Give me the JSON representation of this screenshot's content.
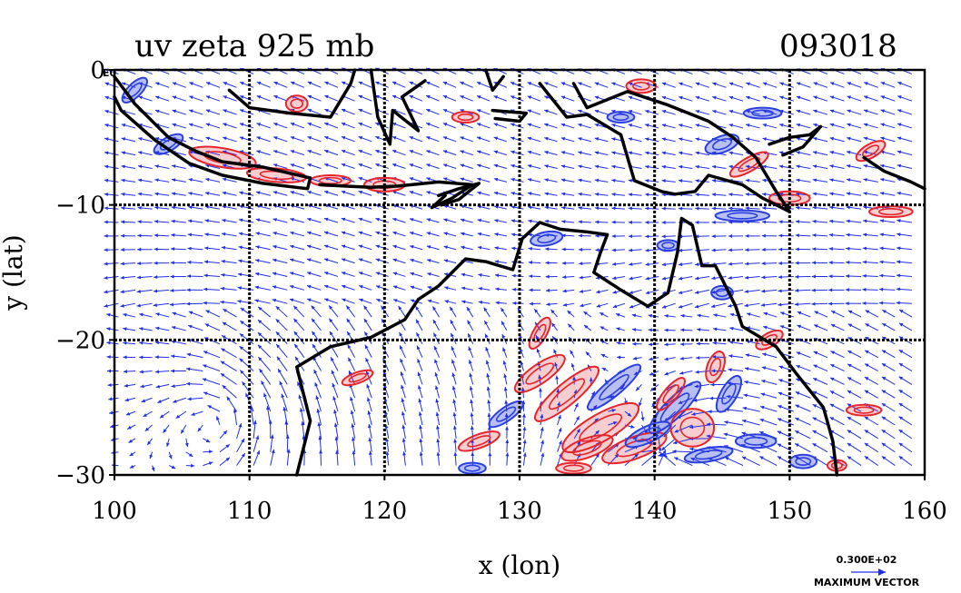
{
  "window": {
    "title_left": "uv zeta 925 mb",
    "title_right": "093018"
  },
  "chart_data": {
    "type": "vector_field_contour_map",
    "title": "uv zeta 925 mb",
    "timestamp": "093018",
    "xlabel": "x (lon)",
    "ylabel": "y (lat)",
    "xlim": [
      100,
      160
    ],
    "ylim": [
      -30,
      0
    ],
    "x_ticks": [
      "100",
      "110",
      "120",
      "130",
      "140",
      "150",
      "160"
    ],
    "y_ticks": [
      "0",
      "−10",
      "−20",
      "−30"
    ],
    "y_tick_values": [
      0,
      -10,
      -20,
      -30
    ],
    "x_tick_values": [
      100,
      110,
      120,
      130,
      140,
      150,
      160
    ],
    "y0_suffix": "E0",
    "grid": true,
    "vector_color": "#1f2ee6",
    "positive_contour_color": "#e8242a",
    "negative_contour_color": "#2a3fe0",
    "land_outline_color": "#000000",
    "reference_vector": {
      "magnitude": "0.300E+02",
      "label": "MAXIMUM VECTOR"
    }
  }
}
